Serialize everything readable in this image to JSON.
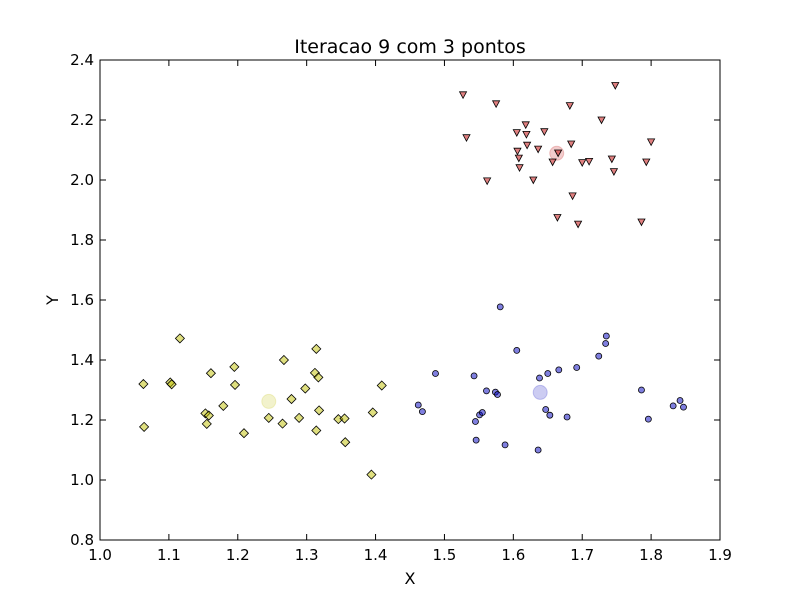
{
  "chart_data": {
    "type": "scatter",
    "title": "Iteracao 9 com 3 pontos",
    "xlabel": "X",
    "ylabel": "Y",
    "xlim": [
      1.0,
      1.9
    ],
    "ylim": [
      0.8,
      2.4
    ],
    "x_ticks": [
      "1.0",
      "1.1",
      "1.2",
      "1.3",
      "1.4",
      "1.5",
      "1.6",
      "1.7",
      "1.8",
      "1.9"
    ],
    "y_ticks": [
      "0.8",
      "1.0",
      "1.2",
      "1.4",
      "1.6",
      "1.8",
      "2.0",
      "2.2",
      "2.4"
    ],
    "grid": false,
    "series": [
      {
        "marker": "diamond",
        "color": "#bfbf00",
        "points": [
          [
            1.063,
            1.32
          ],
          [
            1.064,
            1.177
          ],
          [
            1.102,
            1.325
          ],
          [
            1.104,
            1.319
          ],
          [
            1.116,
            1.472
          ],
          [
            1.153,
            1.222
          ],
          [
            1.155,
            1.187
          ],
          [
            1.158,
            1.215
          ],
          [
            1.161,
            1.356
          ],
          [
            1.179,
            1.247
          ],
          [
            1.195,
            1.377
          ],
          [
            1.196,
            1.317
          ],
          [
            1.209,
            1.156
          ],
          [
            1.245,
            1.207
          ],
          [
            1.265,
            1.188
          ],
          [
            1.267,
            1.4
          ],
          [
            1.278,
            1.27
          ],
          [
            1.289,
            1.207
          ],
          [
            1.298,
            1.305
          ],
          [
            1.312,
            1.357
          ],
          [
            1.314,
            1.437
          ],
          [
            1.314,
            1.165
          ],
          [
            1.317,
            1.342
          ],
          [
            1.318,
            1.232
          ],
          [
            1.346,
            1.203
          ],
          [
            1.355,
            1.205
          ],
          [
            1.356,
            1.126
          ],
          [
            1.394,
            1.018
          ],
          [
            1.396,
            1.225
          ],
          [
            1.409,
            1.315
          ]
        ]
      },
      {
        "marker": "circle",
        "color": "#0000bf",
        "points": [
          [
            1.462,
            1.25
          ],
          [
            1.468,
            1.228
          ],
          [
            1.487,
            1.355
          ],
          [
            1.543,
            1.347
          ],
          [
            1.545,
            1.195
          ],
          [
            1.546,
            1.133
          ],
          [
            1.551,
            1.217
          ],
          [
            1.555,
            1.225
          ],
          [
            1.561,
            1.297
          ],
          [
            1.574,
            1.293
          ],
          [
            1.577,
            1.285
          ],
          [
            1.581,
            1.577
          ],
          [
            1.588,
            1.117
          ],
          [
            1.605,
            1.432
          ],
          [
            1.636,
            1.1
          ],
          [
            1.638,
            1.34
          ],
          [
            1.647,
            1.235
          ],
          [
            1.65,
            1.355
          ],
          [
            1.653,
            1.216
          ],
          [
            1.666,
            1.367
          ],
          [
            1.678,
            1.21
          ],
          [
            1.692,
            1.375
          ],
          [
            1.724,
            1.413
          ],
          [
            1.734,
            1.455
          ],
          [
            1.735,
            1.48
          ],
          [
            1.786,
            1.3
          ],
          [
            1.796,
            1.203
          ],
          [
            1.832,
            1.247
          ],
          [
            1.842,
            1.265
          ],
          [
            1.847,
            1.243
          ]
        ]
      },
      {
        "marker": "triangle-down",
        "color": "#bf0000",
        "points": [
          [
            1.527,
            2.284
          ],
          [
            1.532,
            2.141
          ],
          [
            1.562,
            1.997
          ],
          [
            1.575,
            2.254
          ],
          [
            1.605,
            2.158
          ],
          [
            1.606,
            2.096
          ],
          [
            1.608,
            2.073
          ],
          [
            1.609,
            2.041
          ],
          [
            1.618,
            2.184
          ],
          [
            1.619,
            2.152
          ],
          [
            1.62,
            2.116
          ],
          [
            1.629,
            2.0
          ],
          [
            1.636,
            2.103
          ],
          [
            1.645,
            2.161
          ],
          [
            1.657,
            2.06
          ],
          [
            1.664,
            1.875
          ],
          [
            1.665,
            2.09
          ],
          [
            1.682,
            2.248
          ],
          [
            1.684,
            2.12
          ],
          [
            1.686,
            1.947
          ],
          [
            1.694,
            1.853
          ],
          [
            1.7,
            2.058
          ],
          [
            1.71,
            2.062
          ],
          [
            1.728,
            2.2
          ],
          [
            1.743,
            2.07
          ],
          [
            1.746,
            2.028
          ],
          [
            1.748,
            2.315
          ],
          [
            1.786,
            1.86
          ],
          [
            1.793,
            2.06
          ],
          [
            1.8,
            2.127
          ]
        ]
      }
    ],
    "centroids": [
      {
        "x": 1.245,
        "y": 1.262,
        "color": "#bfbf00"
      },
      {
        "x": 1.639,
        "y": 1.292,
        "color": "#0000bf"
      },
      {
        "x": 1.663,
        "y": 2.089,
        "color": "#bf0000"
      }
    ]
  }
}
